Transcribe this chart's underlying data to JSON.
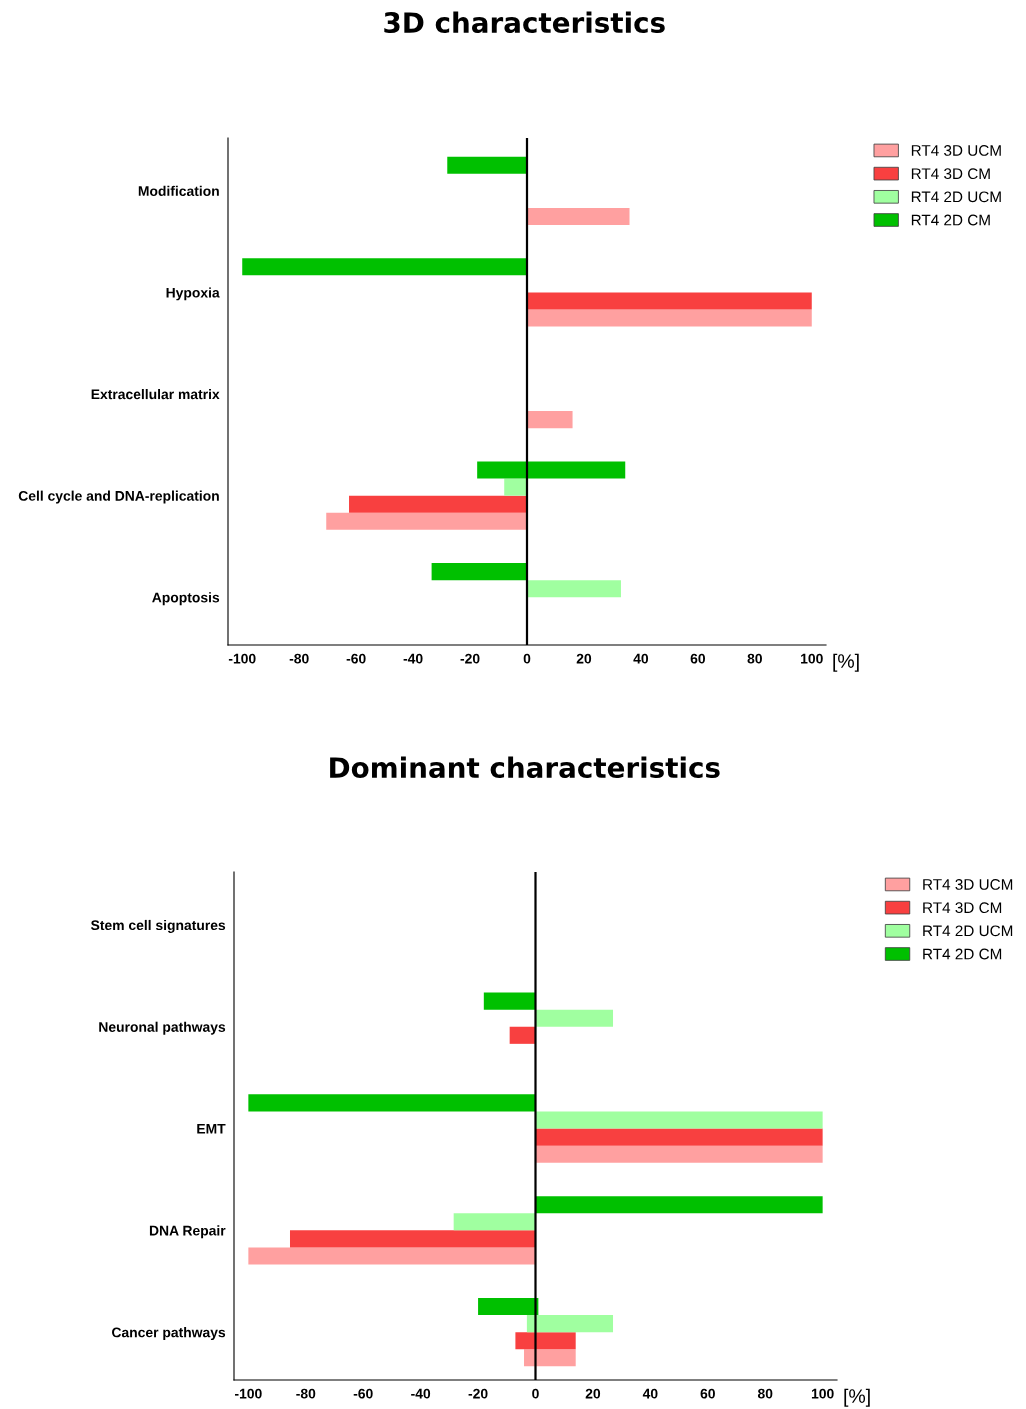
{
  "chart_data": [
    {
      "type": "bar",
      "orientation": "horizontal",
      "title": "3D characteristics",
      "xlabel": "[%]",
      "categories": [
        "Modification",
        "Hypoxia",
        "Extracellular matrix",
        "Cell cycle and DNA-replication",
        "Apoptosis"
      ],
      "series": [
        {
          "name": "RT4 3D UCM",
          "color": "#ffa0a0",
          "values": [
            36,
            100,
            16,
            -70.5,
            null
          ],
          "base": [
            0,
            0,
            0,
            0,
            null
          ]
        },
        {
          "name": "RT4 3D CM",
          "color": "#f84040",
          "values": [
            null,
            100,
            null,
            -62.5,
            null
          ],
          "base": [
            null,
            0,
            null,
            0,
            null
          ]
        },
        {
          "name": "RT4 2D UCM",
          "color": "#a0ffa0",
          "values": [
            null,
            null,
            null,
            -8,
            33
          ],
          "base": [
            null,
            null,
            null,
            0,
            0
          ]
        },
        {
          "name": "RT4 2D CM",
          "color": "#00c000",
          "values": [
            -28,
            -100,
            null,
            52,
            -33.5
          ],
          "base": [
            0,
            0,
            null,
            -17.5,
            0
          ]
        }
      ],
      "xlim": [
        -105,
        105
      ],
      "xticks": [
        -100,
        -80,
        -60,
        -40,
        -20,
        0,
        20,
        40,
        60,
        80,
        100
      ],
      "ref_lines": [
        {
          "axis": "x",
          "value": 0,
          "color": "#000000"
        }
      ],
      "grid": false,
      "legend": "top right"
    },
    {
      "type": "bar",
      "orientation": "horizontal",
      "title": "Dominant characteristics",
      "xlabel": "[%]",
      "categories": [
        "Stem cell signatures",
        "Neuronal pathways",
        "EMT",
        "DNA Repair",
        "Cancer pathways"
      ],
      "series": [
        {
          "name": "RT4 3D UCM",
          "color": "#ffa0a0",
          "values": [
            null,
            null,
            100,
            -100,
            18
          ],
          "base": [
            null,
            null,
            0,
            0,
            -4
          ]
        },
        {
          "name": "RT4 3D CM",
          "color": "#f84040",
          "values": [
            null,
            -9,
            100,
            -85.5,
            21
          ],
          "base": [
            null,
            0,
            0,
            0,
            -7
          ]
        },
        {
          "name": "RT4 2D UCM",
          "color": "#a0ffa0",
          "values": [
            null,
            27,
            100,
            -28.5,
            30
          ],
          "base": [
            null,
            0,
            0,
            0,
            -3
          ]
        },
        {
          "name": "RT4 2D CM",
          "color": "#00c000",
          "values": [
            null,
            -18,
            -100,
            100,
            21
          ],
          "base": [
            null,
            0,
            0,
            0,
            -20
          ]
        }
      ],
      "xlim": [
        -105,
        105
      ],
      "xticks": [
        -100,
        -80,
        -60,
        -40,
        -20,
        0,
        20,
        40,
        60,
        80,
        100
      ],
      "ref_lines": [
        {
          "axis": "x",
          "value": 0,
          "color": "#000000"
        }
      ],
      "grid": false,
      "legend": "top right"
    }
  ]
}
